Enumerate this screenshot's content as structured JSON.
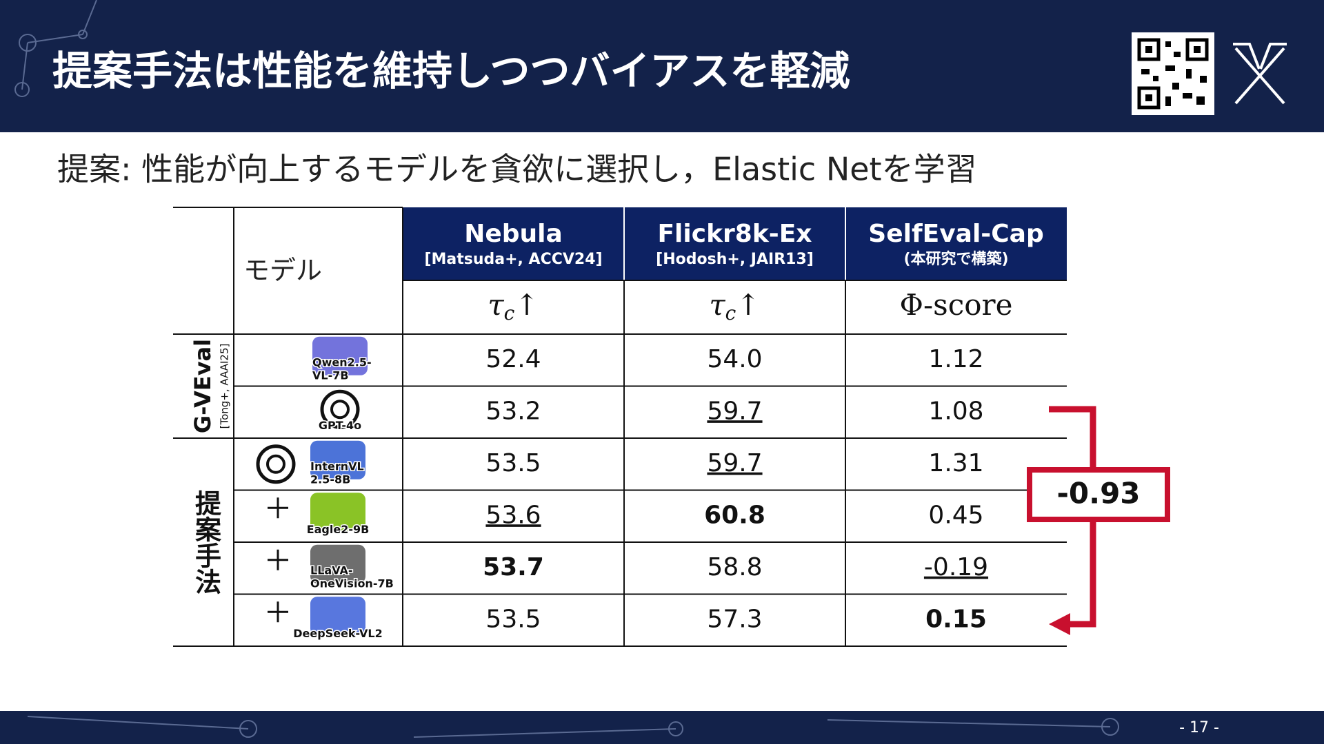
{
  "header": {
    "title": "提案手法は性能を維持しつつバイアスを軽減",
    "page_number": "- 17 -"
  },
  "subtitle": "提案: 性能が向上するモデルを貪欲に選択し，Elastic Netを学習",
  "table": {
    "model_header": "モデル",
    "columns": [
      {
        "name": "Nebula",
        "reference": "[Matsuda+, ACCV24]",
        "metric": {
          "text": "τ",
          "sub": "c",
          "after": "↑"
        }
      },
      {
        "name": "Flickr8k-Ex",
        "reference": "[Hodosh+, JAIR13]",
        "metric": {
          "text": "τ",
          "sub": "c",
          "after": "↑"
        }
      },
      {
        "name": "SelfEval-Cap",
        "reference": "(本研究で構築)",
        "metric": {
          "text": "Φ-score"
        }
      }
    ],
    "groups": [
      {
        "name": "G-VEval",
        "reference": "[Tong+, AAAI25]",
        "rows": [
          {
            "model": [
              "Qwen2.5-",
              "VL-7B"
            ],
            "cells": [
              {
                "text": "52.4"
              },
              {
                "text": "54.0"
              },
              {
                "text": "1.12"
              }
            ]
          },
          {
            "model": [
              "GPT-4o"
            ],
            "cells": [
              {
                "text": "53.2"
              },
              {
                "text": "59.7",
                "style": "underline"
              },
              {
                "text": "1.08"
              }
            ]
          }
        ]
      },
      {
        "name": "提案手法",
        "rows": [
          {
            "model": [
              "InternVL",
              "2.5-8B"
            ],
            "with_gpt": true,
            "cells": [
              {
                "text": "53.5"
              },
              {
                "text": "59.7",
                "style": "underline"
              },
              {
                "text": "1.31"
              }
            ]
          },
          {
            "model": [
              "Eagle2-9B"
            ],
            "added": true,
            "cells": [
              {
                "text": "53.6",
                "style": "underline"
              },
              {
                "text": "60.8",
                "style": "bold"
              },
              {
                "text": "0.45"
              }
            ]
          },
          {
            "model": [
              "LLaVA-",
              "OneVision-7B"
            ],
            "added": true,
            "cells": [
              {
                "text": "53.7",
                "style": "bold"
              },
              {
                "text": "58.8"
              },
              {
                "text": "-0.19",
                "style": "underline"
              }
            ]
          },
          {
            "model": [
              "DeepSeek-VL2"
            ],
            "added": true,
            "cells": [
              {
                "text": "53.5"
              },
              {
                "text": "57.3"
              },
              {
                "text": "0.15",
                "style": "bold"
              }
            ]
          }
        ]
      }
    ]
  },
  "annotation": "-0.93"
}
